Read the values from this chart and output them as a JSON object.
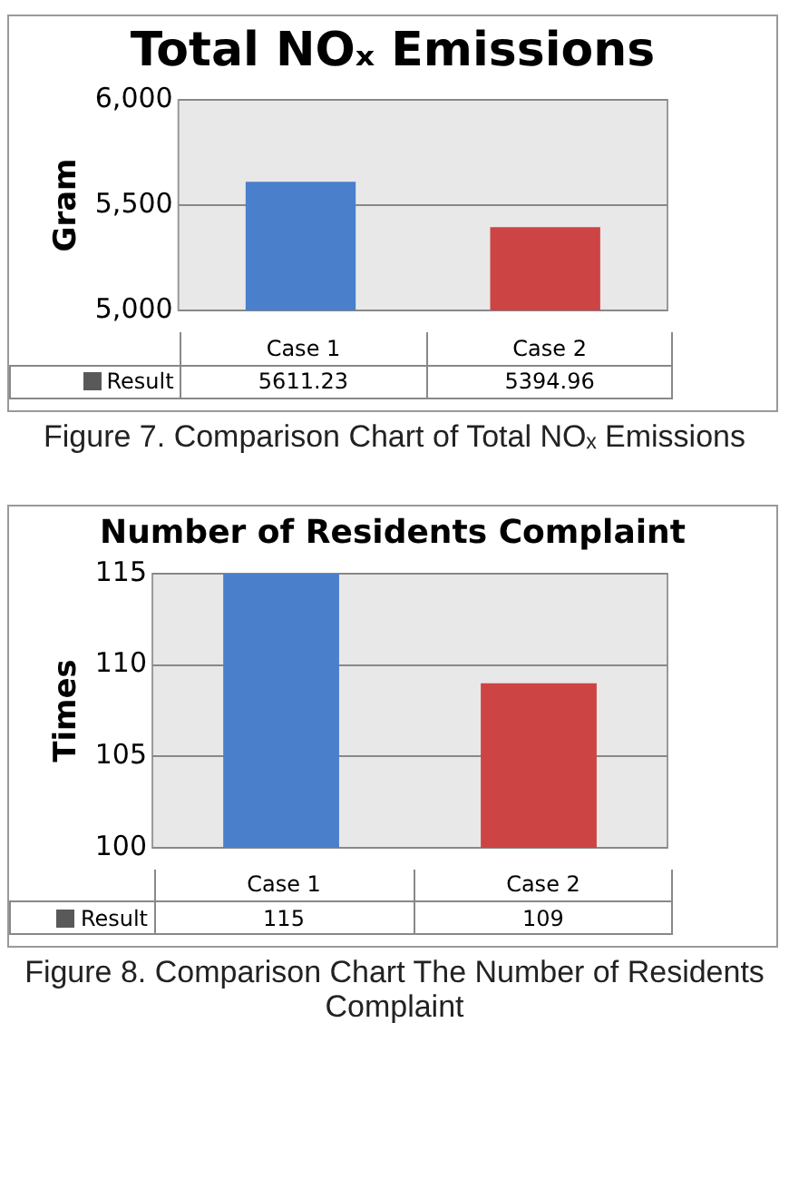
{
  "chart_data": [
    {
      "type": "bar",
      "title": "Total NOₓ Emissions",
      "ylabel": "Gram",
      "categories": [
        "Case 1",
        "Case 2"
      ],
      "series": [
        {
          "name": "Result",
          "color": "#595959",
          "colors": [
            "#4a7fcc",
            "#cc4444"
          ],
          "values": [
            5611.23,
            5394.96
          ]
        }
      ],
      "ylim": [
        5000,
        6000
      ],
      "yticks": [
        {
          "value": 5000,
          "label": "5,000"
        },
        {
          "value": 5500,
          "label": "5,500"
        },
        {
          "value": 6000,
          "label": "6,000"
        }
      ],
      "grid": "y",
      "legend": "bottom",
      "data_labels": true,
      "annotations": [
        "Figure 7. Comparison Chart of Total NOₓ Emissions"
      ]
    },
    {
      "type": "bar",
      "title": "Number of Residents Complaint",
      "ylabel": "Times",
      "categories": [
        "Case 1",
        "Case 2"
      ],
      "series": [
        {
          "name": "Result",
          "color": "#595959",
          "colors": [
            "#4a7fcc",
            "#cc4444"
          ],
          "values": [
            115,
            109
          ]
        }
      ],
      "ylim": [
        100,
        115
      ],
      "yticks": [
        100,
        105,
        110,
        115
      ],
      "grid": "y",
      "legend": "bottom",
      "data_labels": true,
      "annotations": [
        "Figure 8. Comparison Chart The Number of Residents Complaint"
      ]
    }
  ]
}
